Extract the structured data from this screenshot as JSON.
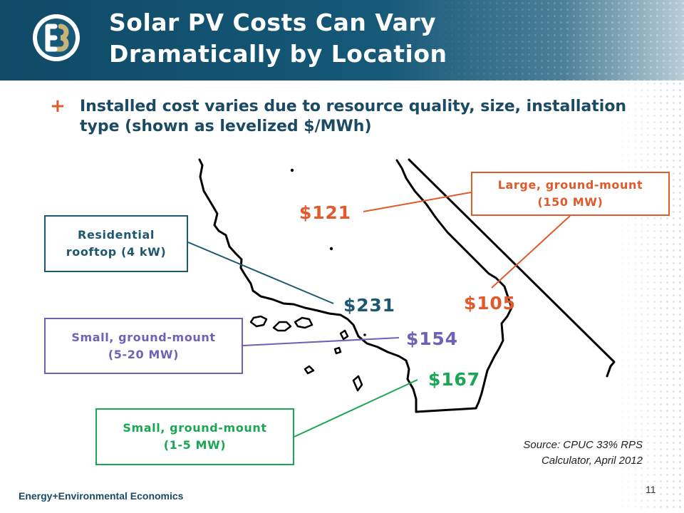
{
  "slide": {
    "title_line1": "Solar PV Costs Can Vary",
    "title_line2": "Dramatically by Location",
    "bullet_icon": "+",
    "bullet_text": "Installed cost varies due to resource quality, size, installation type (shown as levelized $/MWh)",
    "page_number": "11",
    "footer_brand": "Energy+Environmental Economics"
  },
  "callouts": {
    "residential_line1": "Residential",
    "residential_line2": "rooftop (4 kW)",
    "large_line1": "Large, ground-mount",
    "large_line2": "(150 MW)",
    "small520_line1": "Small, ground-mount",
    "small520_line2": "(5-20 MW)",
    "small15_line1": "Small, ground-mount",
    "small15_line2": "(1-5 MW)"
  },
  "prices": {
    "p121": "$121",
    "p231": "$231",
    "p105": "$105",
    "p154": "$154",
    "p167": "$167"
  },
  "source": {
    "line1": "Source:  CPUC 33% RPS",
    "line2": "Calculator, April 2012"
  },
  "icons": {
    "logo": "e3-logo-icon",
    "bullet": "plus-bullet-icon"
  },
  "colors": {
    "header_blue": "#0f4a67",
    "orange": "#e05a2b",
    "teal": "#1e5870",
    "purple": "#6b63b5",
    "green": "#1aa653"
  }
}
